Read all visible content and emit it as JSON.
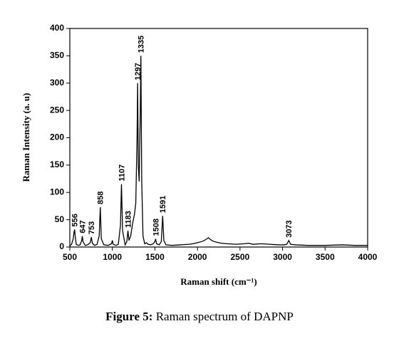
{
  "chart_data": {
    "type": "line",
    "xlabel": "Raman shift (cm⁻¹)",
    "ylabel": "Raman Intensity (a. u)",
    "x": [
      500,
      520,
      540,
      550,
      556,
      562,
      575,
      600,
      620,
      640,
      647,
      655,
      680,
      710,
      740,
      753,
      765,
      790,
      820,
      845,
      858,
      870,
      900,
      950,
      990,
      1000,
      1010,
      1040,
      1070,
      1095,
      1107,
      1120,
      1150,
      1170,
      1183,
      1195,
      1215,
      1240,
      1260,
      1275,
      1290,
      1297,
      1305,
      1315,
      1328,
      1335,
      1345,
      1360,
      1380,
      1400,
      1420,
      1450,
      1480,
      1500,
      1508,
      1520,
      1550,
      1575,
      1591,
      1605,
      1630,
      1700,
      1800,
      1900,
      1950,
      2000,
      2050,
      2080,
      2110,
      2130,
      2150,
      2180,
      2220,
      2280,
      2350,
      2450,
      2550,
      2600,
      2650,
      2750,
      2850,
      2950,
      3020,
      3050,
      3073,
      3095,
      3150,
      3300,
      3500,
      3700,
      3850,
      4000
    ],
    "values": [
      2,
      5,
      15,
      28,
      32,
      22,
      5,
      3,
      4,
      12,
      20,
      10,
      3,
      4,
      8,
      18,
      7,
      3,
      5,
      20,
      73,
      15,
      4,
      3,
      6,
      12,
      5,
      3,
      5,
      40,
      115,
      30,
      4,
      10,
      30,
      12,
      20,
      45,
      60,
      80,
      200,
      300,
      150,
      120,
      250,
      350,
      120,
      20,
      6,
      8,
      5,
      4,
      6,
      10,
      15,
      6,
      4,
      10,
      57,
      12,
      4,
      3,
      4,
      5,
      6,
      8,
      10,
      12,
      15,
      17,
      14,
      11,
      9,
      7,
      6,
      5,
      6,
      7,
      5,
      6,
      5,
      4,
      4,
      5,
      12,
      5,
      4,
      3,
      3,
      4,
      3,
      3
    ],
    "color": "#000000",
    "annotations": [
      556,
      647,
      753,
      858,
      1107,
      1183,
      1297,
      1335,
      1508,
      1591,
      3073
    ],
    "xlim": [
      500,
      4000
    ],
    "xticks": [
      500,
      1000,
      1500,
      2000,
      2500,
      3000,
      3500,
      4000
    ],
    "ylim": [
      0,
      400
    ],
    "yticks": [
      0,
      50,
      100,
      150,
      200,
      250,
      300,
      350,
      400
    ]
  },
  "caption": {
    "label": "Figure 5:",
    "text": "Raman spectrum of DAPNP"
  }
}
